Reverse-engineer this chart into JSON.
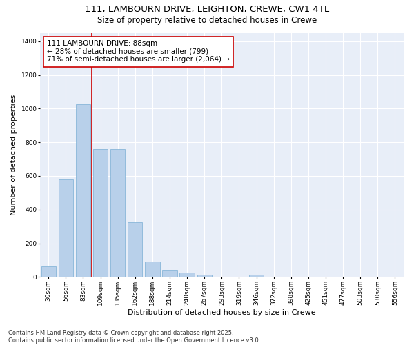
{
  "title_line1": "111, LAMBOURN DRIVE, LEIGHTON, CREWE, CW1 4TL",
  "title_line2": "Size of property relative to detached houses in Crewe",
  "xlabel": "Distribution of detached houses by size in Crewe",
  "ylabel": "Number of detached properties",
  "bar_color": "#b8d0ea",
  "bar_edge_color": "#7aaed4",
  "background_color": "#e8eef8",
  "grid_color": "#ffffff",
  "categories": [
    "30sqm",
    "56sqm",
    "83sqm",
    "109sqm",
    "135sqm",
    "162sqm",
    "188sqm",
    "214sqm",
    "240sqm",
    "267sqm",
    "293sqm",
    "319sqm",
    "346sqm",
    "372sqm",
    "398sqm",
    "425sqm",
    "451sqm",
    "477sqm",
    "503sqm",
    "530sqm",
    "556sqm"
  ],
  "values": [
    65,
    580,
    1025,
    760,
    760,
    325,
    93,
    38,
    25,
    15,
    0,
    0,
    15,
    0,
    0,
    0,
    0,
    0,
    0,
    0,
    0
  ],
  "ylim": [
    0,
    1450
  ],
  "yticks": [
    0,
    200,
    400,
    600,
    800,
    1000,
    1200,
    1400
  ],
  "vline_color": "#cc0000",
  "vline_x": 2.5,
  "annotation_text": "111 LAMBOURN DRIVE: 88sqm\n← 28% of detached houses are smaller (799)\n71% of semi-detached houses are larger (2,064) →",
  "footer_line1": "Contains HM Land Registry data © Crown copyright and database right 2025.",
  "footer_line2": "Contains public sector information licensed under the Open Government Licence v3.0.",
  "title_fontsize": 9.5,
  "subtitle_fontsize": 8.5,
  "axis_label_fontsize": 8,
  "tick_fontsize": 6.5,
  "annotation_fontsize": 7.5,
  "footer_fontsize": 6
}
